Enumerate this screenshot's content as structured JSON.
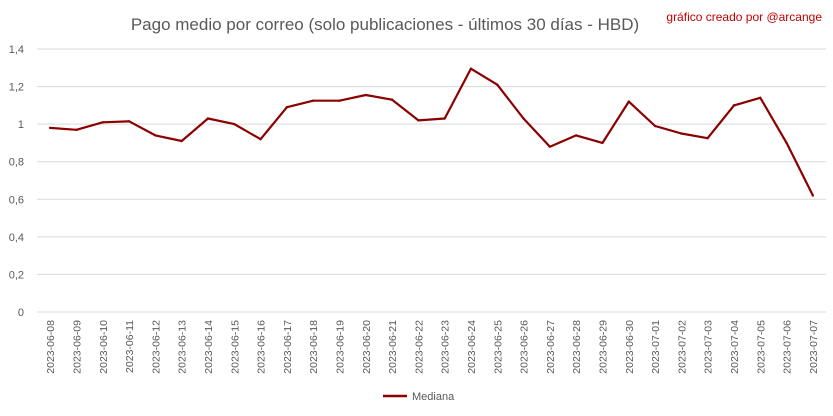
{
  "chart_data": {
    "type": "line",
    "title": "Pago medio por correo (solo publicaciones - últimos 30 días - HBD)",
    "credit": "gráfico creado por @arcange",
    "xlabel": "",
    "ylabel": "",
    "ylim": [
      0,
      1.4
    ],
    "yticks": [
      0,
      0.2,
      0.4,
      0.6,
      0.8,
      1,
      1.2,
      1.4
    ],
    "ytick_labels": [
      "0",
      "0,2",
      "0,4",
      "0,6",
      "0,8",
      "1",
      "1,2",
      "1,4"
    ],
    "grid": true,
    "legend_position": "bottom",
    "categories": [
      "2023-06-08",
      "2023-06-09",
      "2023-06-10",
      "2023-06-11",
      "2023-06-12",
      "2023-06-13",
      "2023-06-14",
      "2023-06-15",
      "2023-06-16",
      "2023-06-17",
      "2023-06-18",
      "2023-06-19",
      "2023-06-20",
      "2023-06-21",
      "2023-06-22",
      "2023-06-23",
      "2023-06-24",
      "2023-06-25",
      "2023-06-26",
      "2023-06-27",
      "2023-06-28",
      "2023-06-29",
      "2023-06-30",
      "2023-07-01",
      "2023-07-02",
      "2023-07-03",
      "2023-07-04",
      "2023-07-05",
      "2023-07-06",
      "2023-07-07"
    ],
    "series": [
      {
        "name": "Mediana",
        "color": "#8b0000",
        "values": [
          0.98,
          0.97,
          1.01,
          1.015,
          0.94,
          0.91,
          1.03,
          1.0,
          0.92,
          1.09,
          1.125,
          1.125,
          1.155,
          1.13,
          1.02,
          1.03,
          1.295,
          1.21,
          1.03,
          0.88,
          0.94,
          0.9,
          1.12,
          0.99,
          0.95,
          0.925,
          1.1,
          1.14,
          0.9,
          0.62
        ]
      }
    ]
  }
}
